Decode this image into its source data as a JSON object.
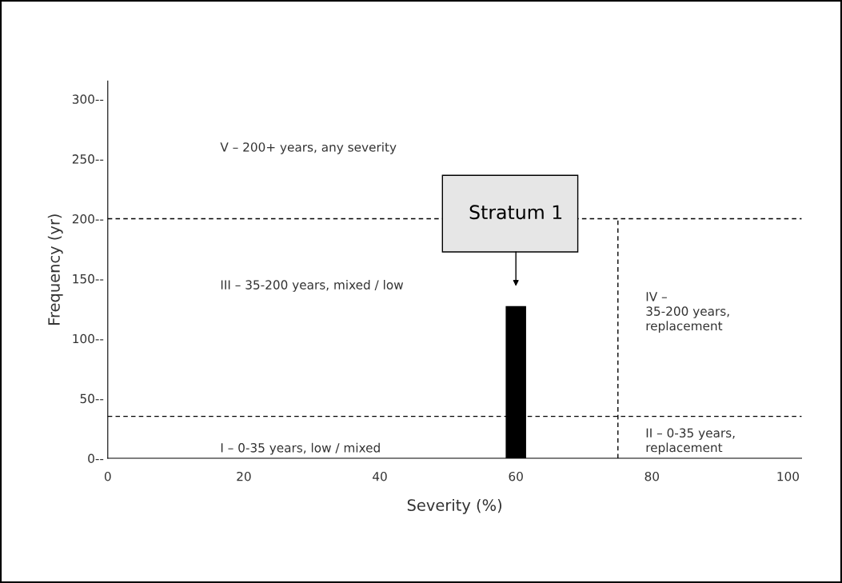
{
  "chart_data": {
    "type": "bar",
    "xlabel": "Severity (%)",
    "ylabel": "Frequency (yr)",
    "x": [
      60
    ],
    "values": [
      127
    ],
    "color": "#000000",
    "xlim": [
      0,
      102
    ],
    "xticks": [
      0,
      20,
      40,
      60,
      80,
      100
    ],
    "ylim": [
      0,
      315
    ],
    "yticks": [
      {
        "value": 0,
        "label": "0--"
      },
      {
        "value": 50,
        "label": "50--"
      },
      {
        "value": 100,
        "label": "100--"
      },
      {
        "value": 150,
        "label": "150--"
      },
      {
        "value": 200,
        "label": "200--"
      },
      {
        "value": 250,
        "label": "250--"
      },
      {
        "value": 300,
        "label": "300--"
      }
    ],
    "grid": false,
    "ref_lines": [
      {
        "axis": "y",
        "value": 200,
        "line_style": "dashed",
        "color": "#000000"
      },
      {
        "axis": "y",
        "value": 35,
        "line_style": "dashed",
        "color": "#000000"
      },
      {
        "axis": "x",
        "value": 75,
        "line_style": "dashed",
        "color": "#000000"
      }
    ],
    "annotations": [
      "Stratum 1",
      "V – 200+ years, any severity",
      "III – 35-200 years, mixed / low",
      "I – 0-35 years, low / mixed",
      "IV –\n35-200 years,\nreplacement",
      "II – 0-35 years,\nreplacement"
    ]
  }
}
